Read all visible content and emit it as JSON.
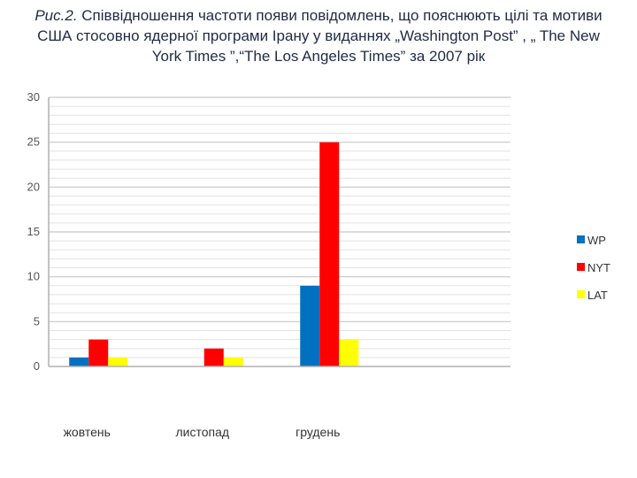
{
  "caption": {
    "prefix": "Рис.2.",
    "text": "Співвідношення частоти появи повідомлень, що пояснюють цілі та мотиви США стосовно ядерної програми Ірану у виданнях „Washington Post” , „ The New York Times ”,“The Los Angeles Times” за 2007 рік"
  },
  "chart_data": {
    "type": "bar",
    "title": "",
    "xlabel": "",
    "ylabel": "",
    "categories": [
      "жовтень",
      "листопад",
      "грудень",
      ""
    ],
    "series": [
      {
        "name": "WP",
        "color": "#0070c0",
        "values": [
          1,
          0,
          9,
          0
        ]
      },
      {
        "name": "NYT",
        "color": "#ff0000",
        "values": [
          3,
          2,
          25,
          0
        ]
      },
      {
        "name": "LAT",
        "color": "#ffff00",
        "values": [
          1,
          1,
          3,
          0
        ]
      }
    ],
    "ylim": [
      0,
      30
    ],
    "yticks": [
      0,
      5,
      10,
      15,
      20,
      25,
      30
    ],
    "grid": true,
    "legend_position": "right"
  }
}
